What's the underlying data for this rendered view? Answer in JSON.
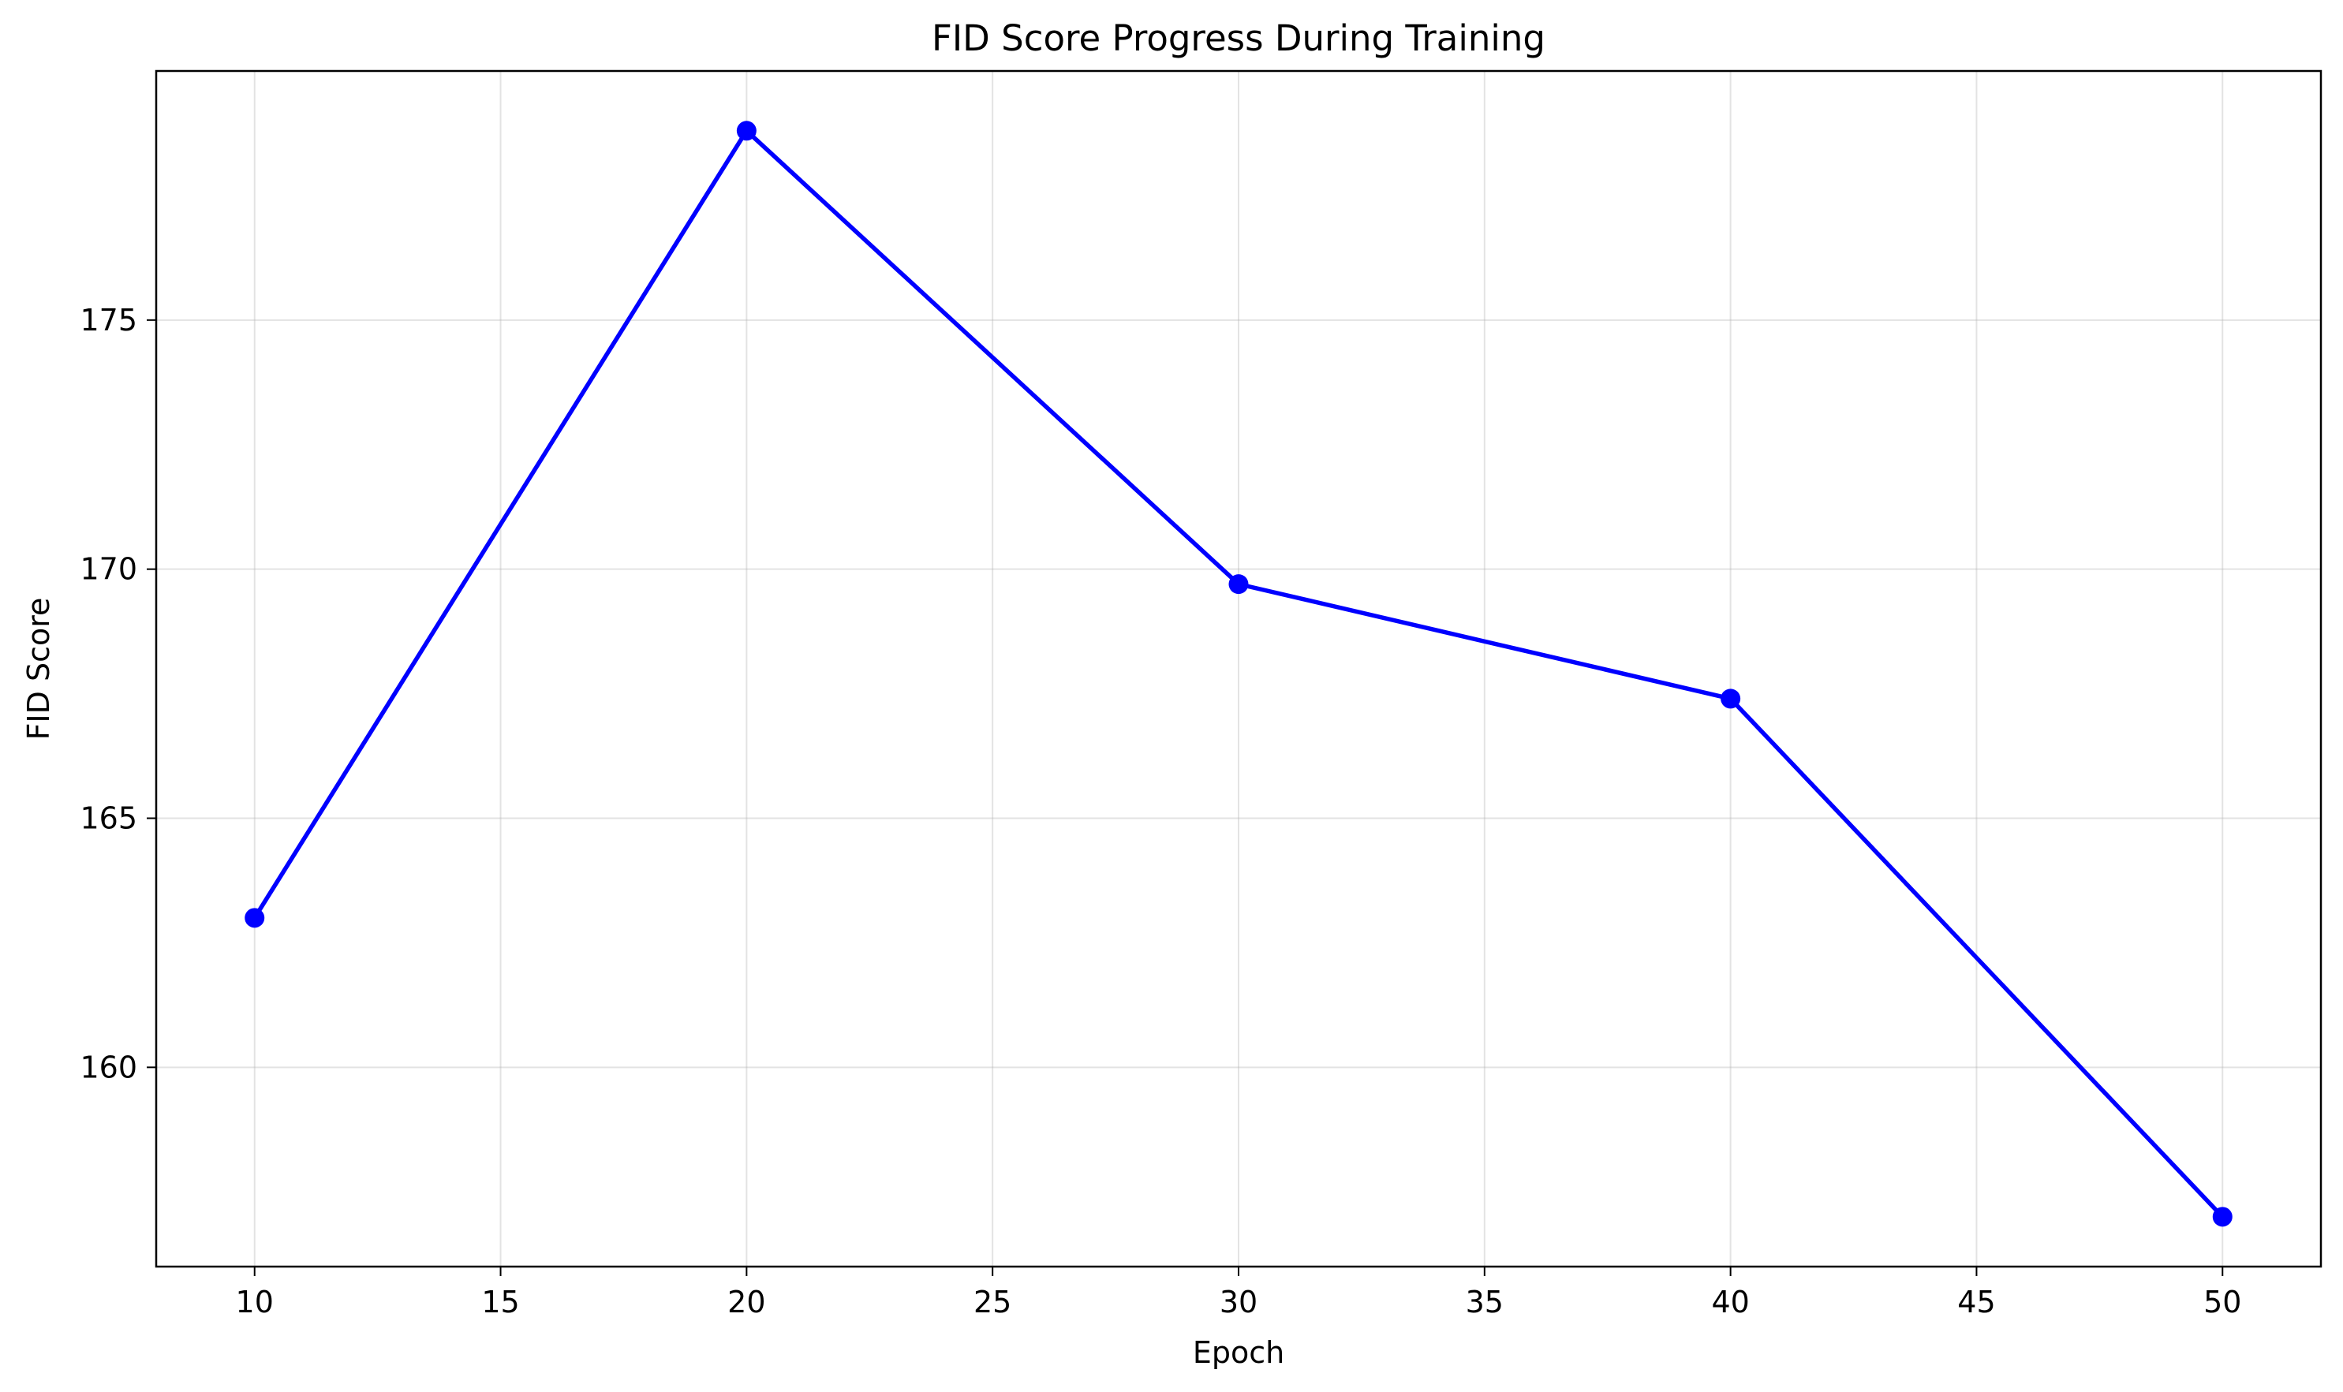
{
  "chart_data": {
    "type": "line",
    "title": "FID Score Progress During Training",
    "xlabel": "Epoch",
    "ylabel": "FID Score",
    "x": [
      10,
      20,
      30,
      40,
      50
    ],
    "series": [
      {
        "values": [
          163.0,
          178.8,
          169.7,
          167.4,
          157.0
        ],
        "color": "#0000ff",
        "marker": "circle"
      }
    ],
    "xlim": [
      8,
      52
    ],
    "ylim": [
      156,
      180
    ],
    "xticks": [
      10,
      15,
      20,
      25,
      30,
      35,
      40,
      45,
      50
    ],
    "yticks": [
      160,
      165,
      170,
      175
    ],
    "grid": true,
    "legend": "none"
  }
}
